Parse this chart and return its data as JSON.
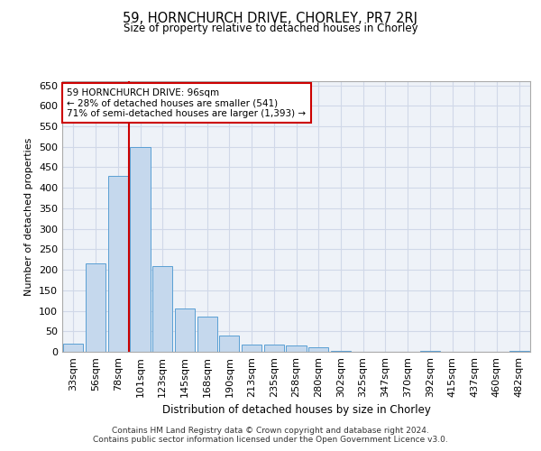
{
  "title": "59, HORNCHURCH DRIVE, CHORLEY, PR7 2RJ",
  "subtitle": "Size of property relative to detached houses in Chorley",
  "xlabel": "Distribution of detached houses by size in Chorley",
  "ylabel": "Number of detached properties",
  "categories": [
    "33sqm",
    "56sqm",
    "78sqm",
    "101sqm",
    "123sqm",
    "145sqm",
    "168sqm",
    "190sqm",
    "213sqm",
    "235sqm",
    "258sqm",
    "280sqm",
    "302sqm",
    "325sqm",
    "347sqm",
    "370sqm",
    "392sqm",
    "415sqm",
    "437sqm",
    "460sqm",
    "482sqm"
  ],
  "values": [
    20,
    215,
    430,
    500,
    210,
    105,
    85,
    40,
    18,
    17,
    15,
    10,
    3,
    0,
    0,
    0,
    3,
    0,
    0,
    0,
    3
  ],
  "bar_color": "#c5d8ed",
  "bar_edge_color": "#5a9fd4",
  "grid_color": "#d0d8e8",
  "background_color": "#eef2f8",
  "annotation_line1": "59 HORNCHURCH DRIVE: 96sqm",
  "annotation_line2": "← 28% of detached houses are smaller (541)",
  "annotation_line3": "71% of semi-detached houses are larger (1,393) →",
  "annotation_box_color": "#ffffff",
  "annotation_box_edge": "#cc0000",
  "red_line_color": "#cc0000",
  "footer_line1": "Contains HM Land Registry data © Crown copyright and database right 2024.",
  "footer_line2": "Contains public sector information licensed under the Open Government Licence v3.0.",
  "ylim": [
    0,
    660
  ],
  "yticks": [
    0,
    50,
    100,
    150,
    200,
    250,
    300,
    350,
    400,
    450,
    500,
    550,
    600,
    650
  ]
}
